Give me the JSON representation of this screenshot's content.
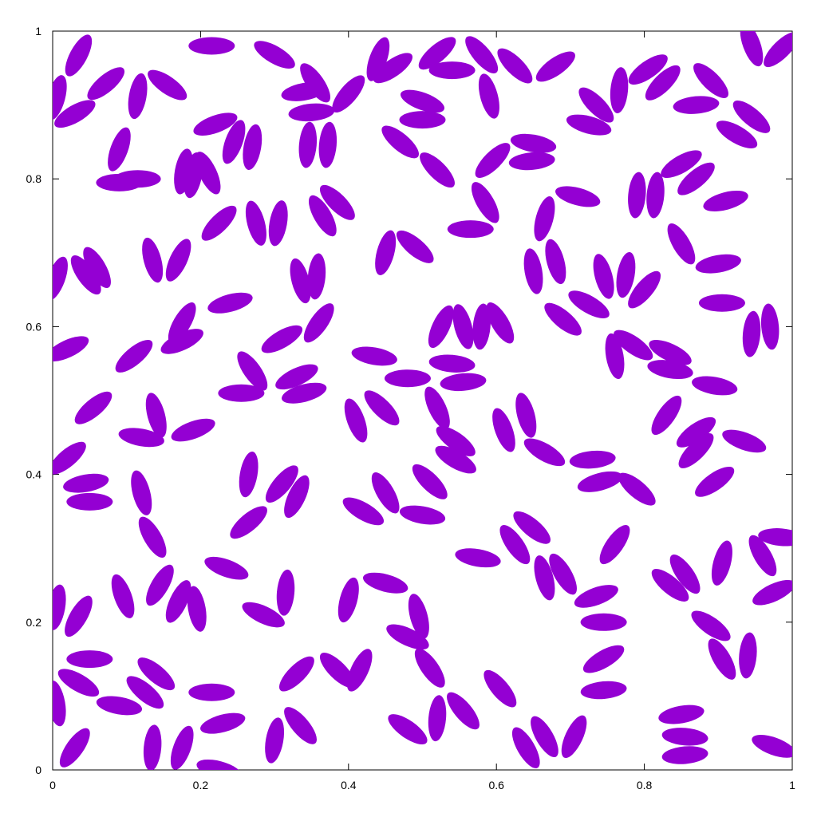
{
  "chart_data": {
    "type": "scatter",
    "marker": "ellipse",
    "marker_color": "#9400d3",
    "title": "",
    "xlabel": "",
    "ylabel": "",
    "xlim": [
      0,
      1
    ],
    "ylim": [
      0,
      1
    ],
    "grid": false,
    "legend": "none",
    "x_ticks": [
      "0",
      "0.2",
      "0.4",
      "0.6",
      "0.8",
      "1"
    ],
    "y_ticks": [
      "0",
      "0.2",
      "0.4",
      "0.6",
      "0.8",
      "1"
    ],
    "series": [
      {
        "values": [
          {
            "x": 0.035,
            "y": 0.967,
            "angle": 62
          },
          {
            "x": 0.072,
            "y": 0.929,
            "angle": 40
          },
          {
            "x": 0.03,
            "y": 0.888,
            "angle": 30
          },
          {
            "x": 0.005,
            "y": 0.91,
            "angle": 75
          },
          {
            "x": 0.115,
            "y": 0.912,
            "angle": 80
          },
          {
            "x": 0.155,
            "y": 0.927,
            "angle": -35
          },
          {
            "x": 0.215,
            "y": 0.98,
            "angle": 0
          },
          {
            "x": 0.09,
            "y": 0.84,
            "angle": 70
          },
          {
            "x": 0.115,
            "y": 0.8,
            "angle": 0
          },
          {
            "x": 0.177,
            "y": 0.81,
            "angle": 80
          },
          {
            "x": 0.21,
            "y": 0.808,
            "angle": -65
          },
          {
            "x": 0.22,
            "y": 0.874,
            "angle": 20
          },
          {
            "x": 0.245,
            "y": 0.85,
            "angle": 70
          },
          {
            "x": 0.27,
            "y": 0.843,
            "angle": 80
          },
          {
            "x": 0.3,
            "y": 0.968,
            "angle": -30
          },
          {
            "x": 0.34,
            "y": 0.918,
            "angle": 10
          },
          {
            "x": 0.35,
            "y": 0.89,
            "angle": 5
          },
          {
            "x": 0.355,
            "y": 0.93,
            "angle": -55
          },
          {
            "x": 0.345,
            "y": 0.846,
            "angle": 85
          },
          {
            "x": 0.372,
            "y": 0.846,
            "angle": 85
          },
          {
            "x": 0.44,
            "y": 0.962,
            "angle": 70
          },
          {
            "x": 0.4,
            "y": 0.915,
            "angle": 50
          },
          {
            "x": 0.46,
            "y": 0.95,
            "angle": 35
          },
          {
            "x": 0.52,
            "y": 0.97,
            "angle": 40
          },
          {
            "x": 0.54,
            "y": 0.947,
            "angle": 0
          },
          {
            "x": 0.58,
            "y": 0.968,
            "angle": -50
          },
          {
            "x": 0.59,
            "y": 0.912,
            "angle": -75
          },
          {
            "x": 0.5,
            "y": 0.905,
            "angle": -20
          },
          {
            "x": 0.5,
            "y": 0.88,
            "angle": 0
          },
          {
            "x": 0.47,
            "y": 0.85,
            "angle": -40
          },
          {
            "x": 0.52,
            "y": 0.812,
            "angle": -45
          },
          {
            "x": 0.625,
            "y": 0.953,
            "angle": -45
          },
          {
            "x": 0.68,
            "y": 0.952,
            "angle": 35
          },
          {
            "x": 0.735,
            "y": 0.9,
            "angle": -45
          },
          {
            "x": 0.766,
            "y": 0.92,
            "angle": 85
          },
          {
            "x": 0.725,
            "y": 0.873,
            "angle": -15
          },
          {
            "x": 0.805,
            "y": 0.948,
            "angle": 35
          },
          {
            "x": 0.825,
            "y": 0.93,
            "angle": 45
          },
          {
            "x": 0.87,
            "y": 0.9,
            "angle": 5
          },
          {
            "x": 0.89,
            "y": 0.933,
            "angle": -45
          },
          {
            "x": 0.945,
            "y": 0.884,
            "angle": -40
          },
          {
            "x": 0.945,
            "y": 0.982,
            "angle": -70
          },
          {
            "x": 0.985,
            "y": 0.975,
            "angle": 45
          },
          {
            "x": 0.925,
            "y": 0.86,
            "angle": -30
          },
          {
            "x": 0.595,
            "y": 0.825,
            "angle": 45
          },
          {
            "x": 0.65,
            "y": 0.848,
            "angle": -10
          },
          {
            "x": 0.648,
            "y": 0.824,
            "angle": 5
          },
          {
            "x": 0.585,
            "y": 0.768,
            "angle": -60
          },
          {
            "x": 0.565,
            "y": 0.732,
            "angle": 0
          },
          {
            "x": 0.665,
            "y": 0.746,
            "angle": 75
          },
          {
            "x": 0.71,
            "y": 0.776,
            "angle": -15
          },
          {
            "x": 0.79,
            "y": 0.778,
            "angle": 85
          },
          {
            "x": 0.815,
            "y": 0.778,
            "angle": 85
          },
          {
            "x": 0.85,
            "y": 0.82,
            "angle": 30
          },
          {
            "x": 0.87,
            "y": 0.8,
            "angle": 40
          },
          {
            "x": 0.91,
            "y": 0.77,
            "angle": 15
          },
          {
            "x": 0.09,
            "y": 0.795,
            "angle": 0
          },
          {
            "x": 0.19,
            "y": 0.805,
            "angle": 80
          },
          {
            "x": 0.225,
            "y": 0.74,
            "angle": 45
          },
          {
            "x": 0.275,
            "y": 0.74,
            "angle": -75
          },
          {
            "x": 0.305,
            "y": 0.74,
            "angle": 80
          },
          {
            "x": 0.365,
            "y": 0.75,
            "angle": -60
          },
          {
            "x": 0.385,
            "y": 0.768,
            "angle": -45
          },
          {
            "x": 0.005,
            "y": 0.665,
            "angle": 70
          },
          {
            "x": 0.045,
            "y": 0.67,
            "angle": -55
          },
          {
            "x": 0.06,
            "y": 0.68,
            "angle": -60
          },
          {
            "x": 0.135,
            "y": 0.69,
            "angle": -75
          },
          {
            "x": 0.17,
            "y": 0.69,
            "angle": 65
          },
          {
            "x": 0.335,
            "y": 0.662,
            "angle": -75
          },
          {
            "x": 0.357,
            "y": 0.668,
            "angle": 85
          },
          {
            "x": 0.45,
            "y": 0.7,
            "angle": 75
          },
          {
            "x": 0.49,
            "y": 0.708,
            "angle": -40
          },
          {
            "x": 0.65,
            "y": 0.675,
            "angle": -80
          },
          {
            "x": 0.68,
            "y": 0.688,
            "angle": -75
          },
          {
            "x": 0.745,
            "y": 0.668,
            "angle": -75
          },
          {
            "x": 0.775,
            "y": 0.67,
            "angle": 80
          },
          {
            "x": 0.8,
            "y": 0.65,
            "angle": 50
          },
          {
            "x": 0.85,
            "y": 0.712,
            "angle": -60
          },
          {
            "x": 0.9,
            "y": 0.685,
            "angle": 10
          },
          {
            "x": 0.905,
            "y": 0.632,
            "angle": 0
          },
          {
            "x": 0.945,
            "y": 0.59,
            "angle": 85
          },
          {
            "x": 0.97,
            "y": 0.6,
            "angle": -85
          },
          {
            "x": 0.175,
            "y": 0.605,
            "angle": 60
          },
          {
            "x": 0.175,
            "y": 0.58,
            "angle": 25
          },
          {
            "x": 0.24,
            "y": 0.632,
            "angle": 15
          },
          {
            "x": 0.31,
            "y": 0.583,
            "angle": 30
          },
          {
            "x": 0.36,
            "y": 0.605,
            "angle": 55
          },
          {
            "x": 0.02,
            "y": 0.57,
            "angle": 25
          },
          {
            "x": 0.11,
            "y": 0.56,
            "angle": 40
          },
          {
            "x": 0.27,
            "y": 0.54,
            "angle": -55
          },
          {
            "x": 0.33,
            "y": 0.532,
            "angle": 25
          },
          {
            "x": 0.34,
            "y": 0.51,
            "angle": 15
          },
          {
            "x": 0.255,
            "y": 0.51,
            "angle": 0
          },
          {
            "x": 0.055,
            "y": 0.49,
            "angle": 40
          },
          {
            "x": 0.14,
            "y": 0.48,
            "angle": -75
          },
          {
            "x": 0.12,
            "y": 0.45,
            "angle": -10
          },
          {
            "x": 0.19,
            "y": 0.46,
            "angle": 20
          },
          {
            "x": 0.525,
            "y": 0.6,
            "angle": 65
          },
          {
            "x": 0.555,
            "y": 0.6,
            "angle": -75
          },
          {
            "x": 0.58,
            "y": 0.6,
            "angle": 85
          },
          {
            "x": 0.605,
            "y": 0.605,
            "angle": -60
          },
          {
            "x": 0.435,
            "y": 0.56,
            "angle": -10
          },
          {
            "x": 0.48,
            "y": 0.53,
            "angle": 0
          },
          {
            "x": 0.54,
            "y": 0.55,
            "angle": -5
          },
          {
            "x": 0.555,
            "y": 0.525,
            "angle": 5
          },
          {
            "x": 0.52,
            "y": 0.49,
            "angle": -65
          },
          {
            "x": 0.41,
            "y": 0.473,
            "angle": -70
          },
          {
            "x": 0.445,
            "y": 0.49,
            "angle": -45
          },
          {
            "x": 0.76,
            "y": 0.56,
            "angle": -80
          },
          {
            "x": 0.785,
            "y": 0.575,
            "angle": -35
          },
          {
            "x": 0.69,
            "y": 0.61,
            "angle": -40
          },
          {
            "x": 0.725,
            "y": 0.63,
            "angle": -30
          },
          {
            "x": 0.835,
            "y": 0.565,
            "angle": -25
          },
          {
            "x": 0.835,
            "y": 0.542,
            "angle": -10
          },
          {
            "x": 0.895,
            "y": 0.52,
            "angle": -10
          },
          {
            "x": 0.83,
            "y": 0.48,
            "angle": 55
          },
          {
            "x": 0.87,
            "y": 0.457,
            "angle": 35
          },
          {
            "x": 0.87,
            "y": 0.432,
            "angle": 45
          },
          {
            "x": 0.935,
            "y": 0.445,
            "angle": -20
          },
          {
            "x": 0.895,
            "y": 0.39,
            "angle": 35
          },
          {
            "x": 0.61,
            "y": 0.46,
            "angle": -70
          },
          {
            "x": 0.64,
            "y": 0.48,
            "angle": -75
          },
          {
            "x": 0.665,
            "y": 0.43,
            "angle": -30
          },
          {
            "x": 0.73,
            "y": 0.42,
            "angle": 5
          },
          {
            "x": 0.74,
            "y": 0.39,
            "angle": 15
          },
          {
            "x": 0.79,
            "y": 0.38,
            "angle": -40
          },
          {
            "x": 0.545,
            "y": 0.445,
            "angle": -35
          },
          {
            "x": 0.545,
            "y": 0.42,
            "angle": -30
          },
          {
            "x": 0.51,
            "y": 0.39,
            "angle": -45
          },
          {
            "x": 0.45,
            "y": 0.375,
            "angle": -60
          },
          {
            "x": 0.42,
            "y": 0.35,
            "angle": -30
          },
          {
            "x": 0.5,
            "y": 0.345,
            "angle": -10
          },
          {
            "x": 0.02,
            "y": 0.422,
            "angle": 40
          },
          {
            "x": 0.045,
            "y": 0.388,
            "angle": 10
          },
          {
            "x": 0.05,
            "y": 0.363,
            "angle": 0
          },
          {
            "x": 0.12,
            "y": 0.375,
            "angle": -75
          },
          {
            "x": 0.265,
            "y": 0.4,
            "angle": 80
          },
          {
            "x": 0.31,
            "y": 0.387,
            "angle": 50
          },
          {
            "x": 0.33,
            "y": 0.37,
            "angle": 65
          },
          {
            "x": 0.265,
            "y": 0.335,
            "angle": 40
          },
          {
            "x": 0.135,
            "y": 0.315,
            "angle": -60
          },
          {
            "x": 0.005,
            "y": 0.22,
            "angle": 80
          },
          {
            "x": 0.035,
            "y": 0.208,
            "angle": 60
          },
          {
            "x": 0.095,
            "y": 0.235,
            "angle": -70
          },
          {
            "x": 0.145,
            "y": 0.25,
            "angle": 60
          },
          {
            "x": 0.17,
            "y": 0.228,
            "angle": 65
          },
          {
            "x": 0.195,
            "y": 0.218,
            "angle": -80
          },
          {
            "x": 0.235,
            "y": 0.273,
            "angle": -20
          },
          {
            "x": 0.285,
            "y": 0.21,
            "angle": -25
          },
          {
            "x": 0.315,
            "y": 0.24,
            "angle": 85
          },
          {
            "x": 0.4,
            "y": 0.23,
            "angle": 75
          },
          {
            "x": 0.45,
            "y": 0.253,
            "angle": -15
          },
          {
            "x": 0.495,
            "y": 0.208,
            "angle": -75
          },
          {
            "x": 0.48,
            "y": 0.18,
            "angle": -25
          },
          {
            "x": 0.51,
            "y": 0.138,
            "angle": -55
          },
          {
            "x": 0.575,
            "y": 0.287,
            "angle": -10
          },
          {
            "x": 0.625,
            "y": 0.305,
            "angle": -55
          },
          {
            "x": 0.648,
            "y": 0.328,
            "angle": -40
          },
          {
            "x": 0.665,
            "y": 0.26,
            "angle": -75
          },
          {
            "x": 0.69,
            "y": 0.265,
            "angle": -60
          },
          {
            "x": 0.735,
            "y": 0.235,
            "angle": 20
          },
          {
            "x": 0.745,
            "y": 0.2,
            "angle": 0
          },
          {
            "x": 0.76,
            "y": 0.305,
            "angle": 55
          },
          {
            "x": 0.835,
            "y": 0.25,
            "angle": -40
          },
          {
            "x": 0.855,
            "y": 0.265,
            "angle": -55
          },
          {
            "x": 0.905,
            "y": 0.28,
            "angle": 75
          },
          {
            "x": 0.96,
            "y": 0.29,
            "angle": -60
          },
          {
            "x": 0.985,
            "y": 0.315,
            "angle": -5
          },
          {
            "x": 0.975,
            "y": 0.24,
            "angle": 25
          },
          {
            "x": 0.89,
            "y": 0.195,
            "angle": -35
          },
          {
            "x": 0.905,
            "y": 0.15,
            "angle": -60
          },
          {
            "x": 0.94,
            "y": 0.155,
            "angle": 85
          },
          {
            "x": 0.745,
            "y": 0.15,
            "angle": 30
          },
          {
            "x": 0.745,
            "y": 0.108,
            "angle": 5
          },
          {
            "x": 0.05,
            "y": 0.15,
            "angle": 0
          },
          {
            "x": 0.035,
            "y": 0.118,
            "angle": -30
          },
          {
            "x": 0.005,
            "y": 0.09,
            "angle": -80
          },
          {
            "x": 0.09,
            "y": 0.087,
            "angle": -10
          },
          {
            "x": 0.125,
            "y": 0.105,
            "angle": -40
          },
          {
            "x": 0.14,
            "y": 0.13,
            "angle": -40
          },
          {
            "x": 0.215,
            "y": 0.105,
            "angle": 0
          },
          {
            "x": 0.23,
            "y": 0.063,
            "angle": 15
          },
          {
            "x": 0.33,
            "y": 0.13,
            "angle": 45
          },
          {
            "x": 0.385,
            "y": 0.135,
            "angle": -45
          },
          {
            "x": 0.415,
            "y": 0.135,
            "angle": 65
          },
          {
            "x": 0.03,
            "y": 0.03,
            "angle": 55
          },
          {
            "x": 0.135,
            "y": 0.03,
            "angle": 85
          },
          {
            "x": 0.175,
            "y": 0.03,
            "angle": 70
          },
          {
            "x": 0.225,
            "y": 0.0,
            "angle": -15
          },
          {
            "x": 0.3,
            "y": 0.04,
            "angle": 80
          },
          {
            "x": 0.335,
            "y": 0.06,
            "angle": -50
          },
          {
            "x": 0.48,
            "y": 0.055,
            "angle": -35
          },
          {
            "x": 0.52,
            "y": 0.07,
            "angle": 85
          },
          {
            "x": 0.555,
            "y": 0.08,
            "angle": -50
          },
          {
            "x": 0.605,
            "y": 0.11,
            "angle": -50
          },
          {
            "x": 0.64,
            "y": 0.03,
            "angle": -60
          },
          {
            "x": 0.665,
            "y": 0.045,
            "angle": -60
          },
          {
            "x": 0.705,
            "y": 0.045,
            "angle": 65
          },
          {
            "x": 0.85,
            "y": 0.075,
            "angle": 10
          },
          {
            "x": 0.855,
            "y": 0.045,
            "angle": -5
          },
          {
            "x": 0.855,
            "y": 0.02,
            "angle": 5
          },
          {
            "x": 0.975,
            "y": 0.032,
            "angle": -20
          }
        ]
      }
    ]
  }
}
